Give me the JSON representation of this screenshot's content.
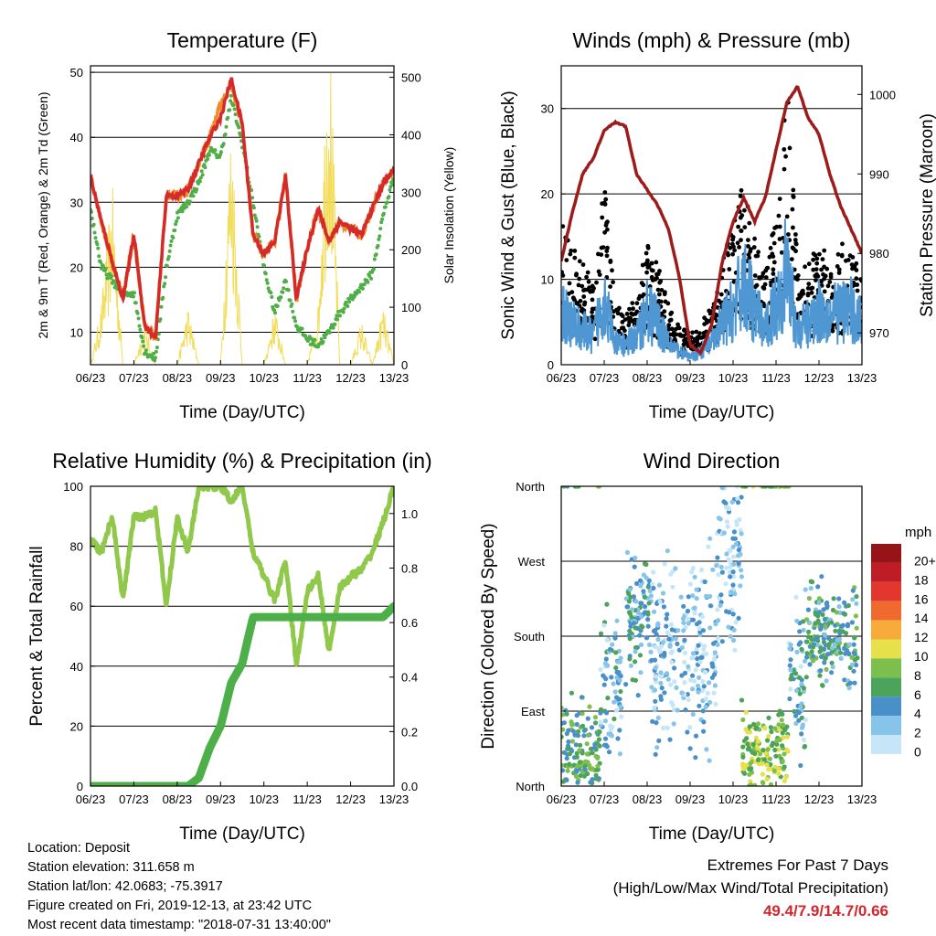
{
  "x_ticks": [
    "06/23",
    "07/23",
    "08/23",
    "09/23",
    "10/23",
    "11/23",
    "12/23",
    "13/23"
  ],
  "panels": {
    "temperature": {
      "title": "Temperature (F)",
      "xlabel": "Time (Day/UTC)",
      "ylabel_left": "2m & 9m T (Red, Orange) & 2m Td (Green)",
      "ylabel_right": "Solar Insolation (Yellow)",
      "left_ticks": [
        "10",
        "20",
        "30",
        "40",
        "50"
      ],
      "right_ticks": [
        "0",
        "100",
        "200",
        "300",
        "400",
        "500"
      ]
    },
    "winds": {
      "title": "Winds (mph) & Pressure (mb)",
      "xlabel": "Time (Day/UTC)",
      "ylabel_left": "Sonic Wind & Gust (Blue, Black)",
      "ylabel_right": "Station Pressure (Maroon)",
      "left_ticks": [
        "0",
        "10",
        "20",
        "30"
      ],
      "right_ticks": [
        "970",
        "980",
        "990",
        "1000"
      ]
    },
    "humidity": {
      "title": "Relative Humidity (%) & Precipitation (in)",
      "xlabel": "Time (Day/UTC)",
      "ylabel_left": "Percent & Total Rainfall",
      "left_ticks": [
        "0",
        "20",
        "40",
        "60",
        "80",
        "100"
      ],
      "right_ticks": [
        "0.0",
        "0.2",
        "0.4",
        "0.6",
        "0.8",
        "1.0"
      ]
    },
    "direction": {
      "title": "Wind Direction",
      "xlabel": "Time (Day/UTC)",
      "ylabel_left": "Direction (Colored By Speed)",
      "left_ticks": [
        "North",
        "East",
        "South",
        "West",
        "North"
      ],
      "legend_title": "mph",
      "legend_labels": [
        "0",
        "2",
        "4",
        "6",
        "8",
        "10",
        "12",
        "14",
        "16",
        "18",
        "20+"
      ],
      "legend_colors": [
        "#c6e6f7",
        "#86c4ea",
        "#4a90c8",
        "#4ca35a",
        "#7cbf4f",
        "#e6e04a",
        "#f7ab3a",
        "#f06a30",
        "#e2362e",
        "#bf1d26",
        "#961318"
      ]
    }
  },
  "chart_data": [
    {
      "type": "line",
      "title": "Temperature (F)",
      "xlabel": "Time (Day/UTC)",
      "ylabel": "2m & 9m T (Red, Orange) & 2m Td (Green)",
      "y2label": "Solar Insolation (Yellow)",
      "x": [
        6,
        6.25,
        6.5,
        6.75,
        7,
        7.25,
        7.5,
        7.75,
        8,
        8.25,
        8.5,
        8.75,
        9,
        9.25,
        9.5,
        9.75,
        10,
        10.25,
        10.5,
        10.75,
        11,
        11.25,
        11.5,
        11.75,
        12,
        12.25,
        12.5,
        12.75,
        13
      ],
      "xlim": [
        6,
        13
      ],
      "ylim": [
        5,
        51
      ],
      "y2lim": [
        0,
        520
      ],
      "series": [
        {
          "name": "2m T",
          "axis": "left",
          "color": "#d42a2a",
          "values": [
            34,
            27,
            21,
            15,
            25,
            11,
            9,
            31,
            31,
            32,
            36,
            40,
            43,
            49,
            42,
            25,
            22,
            24,
            34,
            15,
            23,
            29,
            24,
            27,
            26,
            25,
            29,
            33,
            35
          ]
        },
        {
          "name": "9m T",
          "axis": "left",
          "color": "#f08a2a",
          "values": [
            34,
            27,
            21,
            15,
            25,
            11,
            9,
            31,
            31,
            32,
            36,
            40,
            45,
            48,
            42,
            25,
            22,
            24,
            34,
            15,
            23,
            29,
            24,
            27,
            26,
            25,
            29,
            33,
            35
          ]
        },
        {
          "name": "2m Td",
          "axis": "left",
          "color": "#4fae48",
          "values": [
            29,
            20,
            18,
            16,
            16,
            7,
            6,
            20,
            28,
            30,
            33,
            38,
            37,
            46,
            39,
            30,
            20,
            13,
            18,
            11,
            9,
            8,
            10,
            13,
            15,
            17,
            19,
            28,
            34
          ]
        },
        {
          "name": "Solar Insolation",
          "axis": "right",
          "color": "#f2dc5a",
          "values": [
            0,
            80,
            250,
            0,
            0,
            60,
            0,
            0,
            0,
            80,
            0,
            0,
            0,
            350,
            0,
            0,
            0,
            80,
            0,
            0,
            0,
            80,
            500,
            0,
            0,
            60,
            0,
            80,
            0
          ]
        }
      ]
    },
    {
      "type": "line",
      "title": "Winds (mph) & Pressure (mb)",
      "xlabel": "Time (Day/UTC)",
      "ylabel": "Sonic Wind & Gust (Blue, Black)",
      "y2label": "Station Pressure (Maroon)",
      "x": [
        6,
        6.25,
        6.5,
        6.75,
        7,
        7.25,
        7.5,
        7.75,
        8,
        8.25,
        8.5,
        8.75,
        9,
        9.25,
        9.5,
        9.75,
        10,
        10.25,
        10.5,
        10.75,
        11,
        11.25,
        11.5,
        11.75,
        12,
        12.25,
        12.5,
        12.75,
        13
      ],
      "xlim": [
        6,
        13
      ],
      "ylim": [
        0,
        35
      ],
      "y2lim": [
        966,
        1003.6
      ],
      "series": [
        {
          "name": "Sonic Wind",
          "axis": "left",
          "color": "#4f97d2",
          "values": [
            8,
            6,
            5,
            4,
            10,
            3,
            3,
            4,
            8,
            6,
            3,
            2,
            1,
            2,
            3,
            6,
            8,
            12,
            8,
            5,
            9,
            14,
            5,
            6,
            8,
            7,
            8,
            8,
            6
          ]
        },
        {
          "name": "Gust",
          "axis": "left",
          "color": "#000000",
          "values": [
            14,
            12,
            10,
            8,
            18,
            6,
            5,
            7,
            12,
            10,
            6,
            4,
            3,
            4,
            6,
            10,
            14,
            18,
            13,
            9,
            15,
            28,
            10,
            10,
            12,
            11,
            12,
            11,
            9
          ]
        },
        {
          "name": "Station Pressure",
          "axis": "right",
          "color": "#9e1b1b",
          "values": [
            979,
            985,
            990,
            992,
            995.5,
            996.5,
            996,
            990,
            988,
            986,
            983,
            977,
            968.5,
            967.5,
            971,
            979,
            984,
            987,
            984,
            987,
            993,
            999,
            1001,
            997,
            995,
            990,
            986,
            983,
            980
          ]
        }
      ]
    },
    {
      "type": "line",
      "title": "Relative Humidity (%) & Precipitation (in)",
      "xlabel": "Time (Day/UTC)",
      "ylabel": "Percent & Total Rainfall",
      "x": [
        6,
        6.25,
        6.5,
        6.75,
        7,
        7.25,
        7.5,
        7.75,
        8,
        8.25,
        8.5,
        8.75,
        9,
        9.25,
        9.5,
        9.75,
        10,
        10.25,
        10.5,
        10.75,
        11,
        11.25,
        11.5,
        11.75,
        12,
        12.25,
        12.5,
        12.75,
        13
      ],
      "xlim": [
        6,
        13
      ],
      "ylim": [
        0,
        100
      ],
      "y2lim": [
        0,
        1.1
      ],
      "series": [
        {
          "name": "Relative Humidity",
          "axis": "left",
          "color": "#8fc84a",
          "values": [
            82,
            78,
            90,
            62,
            90,
            90,
            92,
            60,
            90,
            78,
            100,
            100,
            100,
            95,
            100,
            78,
            70,
            62,
            75,
            40,
            65,
            70,
            45,
            66,
            70,
            72,
            78,
            88,
            100
          ]
        },
        {
          "name": "Total Precipitation",
          "axis": "right",
          "color": "#4caf47",
          "values": [
            0,
            0,
            0,
            0,
            0,
            0,
            0,
            0,
            0,
            0,
            0.03,
            0.14,
            0.22,
            0.38,
            0.45,
            0.62,
            0.62,
            0.62,
            0.62,
            0.62,
            0.62,
            0.62,
            0.62,
            0.62,
            0.62,
            0.62,
            0.62,
            0.62,
            0.66
          ]
        }
      ]
    },
    {
      "type": "scatter",
      "title": "Wind Direction",
      "xlabel": "Time (Day/UTC)",
      "ylabel": "Direction (Colored By Speed)",
      "xlim": [
        6,
        13
      ],
      "ylim": [
        0,
        360
      ],
      "legend_title": "mph",
      "clusters": [
        {
          "x0": 6.0,
          "x1": 6.9,
          "dir": 320,
          "spread": 40,
          "speed": 6
        },
        {
          "x0": 6.9,
          "x1": 7.4,
          "dir": 250,
          "spread": 60,
          "speed": 3
        },
        {
          "x0": 7.5,
          "x1": 8.1,
          "dir": 160,
          "spread": 50,
          "speed": 4
        },
        {
          "x0": 8.1,
          "x1": 9.6,
          "dir": 200,
          "spread": 80,
          "speed": 2
        },
        {
          "x0": 9.6,
          "x1": 10.2,
          "dir": 90,
          "spread": 70,
          "speed": 2
        },
        {
          "x0": 10.2,
          "x1": 11.3,
          "dir": 325,
          "spread": 40,
          "speed": 8
        },
        {
          "x0": 11.3,
          "x1": 11.7,
          "dir": 230,
          "spread": 60,
          "speed": 3
        },
        {
          "x0": 11.7,
          "x1": 12.9,
          "dir": 180,
          "spread": 40,
          "speed": 5
        }
      ]
    }
  ],
  "info": {
    "location": "Location: Deposit",
    "elevation": "Station elevation: 311.658 m",
    "latlon": "Station lat/lon: 42.0683; -75.3917",
    "created": "Figure created on Fri, 2019-12-13, at 23:42 UTC",
    "recent": "Most recent data timestamp: \"2018-07-31 13:40:00\""
  },
  "extremes": {
    "line1": "Extremes For Past 7 Days",
    "line2": "(High/Low/Max Wind/Total Precipitation)",
    "values": "49.4/7.9/14.7/0.66"
  }
}
